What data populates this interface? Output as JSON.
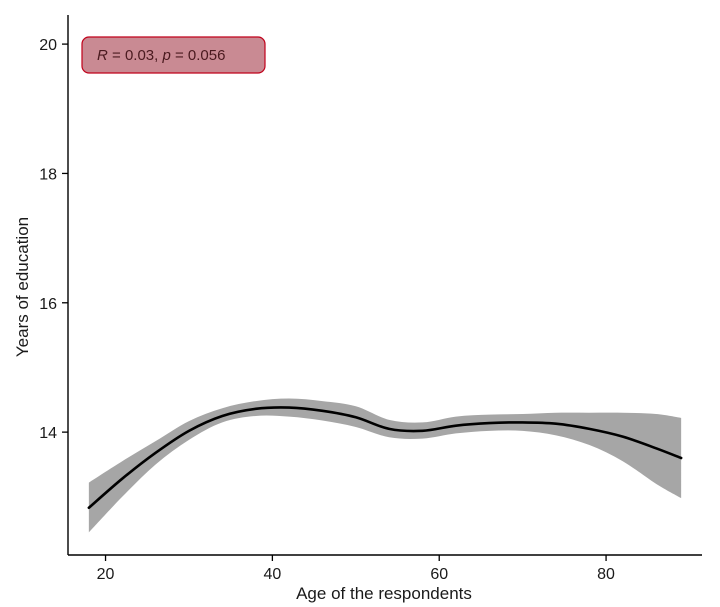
{
  "chart_data": {
    "type": "line",
    "xlabel": "Age of the respondents",
    "ylabel": "Years of education",
    "xlim": [
      15.5,
      91.5
    ],
    "ylim": [
      12.1,
      20.45
    ],
    "x_ticks": [
      20,
      40,
      60,
      80
    ],
    "y_ticks": [
      14,
      16,
      18,
      20
    ],
    "grid": false,
    "annotation": {
      "r_symbol": "R",
      "r_text": " = 0.03, ",
      "p_symbol": "p",
      "p_text": " = 0.056",
      "fill_color": "#c98a93",
      "border_color": "#c0001a"
    },
    "series": [
      {
        "line_color": "#000000",
        "band_color": "#a6a6a6",
        "x": [
          18,
          22,
          26,
          30,
          34,
          38,
          42,
          46,
          50,
          54,
          58,
          62,
          66,
          70,
          74,
          78,
          82,
          86,
          89
        ],
        "y": [
          12.83,
          13.28,
          13.68,
          14.02,
          14.25,
          14.36,
          14.38,
          14.33,
          14.23,
          14.05,
          14.02,
          14.1,
          14.14,
          14.15,
          14.13,
          14.05,
          13.93,
          13.75,
          13.6
        ],
        "lower": [
          12.45,
          13.0,
          13.5,
          13.88,
          14.15,
          14.25,
          14.24,
          14.18,
          14.08,
          13.92,
          13.9,
          13.98,
          14.02,
          14.02,
          13.95,
          13.8,
          13.55,
          13.2,
          12.98
        ],
        "upper": [
          13.22,
          13.55,
          13.86,
          14.17,
          14.37,
          14.48,
          14.52,
          14.48,
          14.4,
          14.19,
          14.15,
          14.24,
          14.27,
          14.28,
          14.3,
          14.3,
          14.3,
          14.28,
          14.22
        ]
      }
    ]
  }
}
